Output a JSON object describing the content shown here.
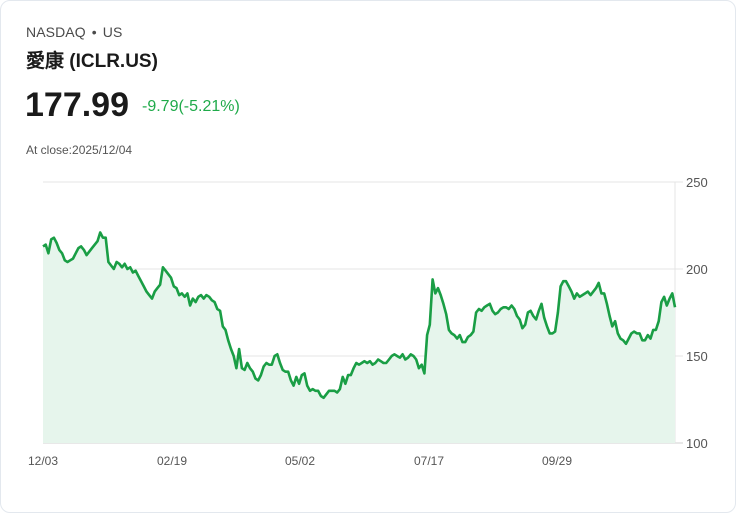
{
  "header": {
    "exchange": "NASDAQ",
    "separator": "•",
    "market": "US",
    "name": "愛康 (ICLR.US)",
    "price": "177.99",
    "change": "-9.79(-5.21%)",
    "close_label": "At close:2025/12/04"
  },
  "colors": {
    "line": "#1a9e45",
    "fill": "#e6f5ec",
    "change": "#1faa4a",
    "grid": "#e4e4e4"
  },
  "chart_data": {
    "type": "area",
    "title": "愛康 (ICLR.US)",
    "xlabel": "",
    "ylabel": "",
    "ylim": [
      100,
      250
    ],
    "yticks": [
      250,
      200,
      150,
      100
    ],
    "xticks": [
      "12/03",
      "02/19",
      "05/02",
      "07/17",
      "09/29"
    ],
    "grid": true,
    "legend": null,
    "series": [
      {
        "name": "ICLR.US close",
        "values": [
          213,
          214,
          209,
          217,
          218,
          215,
          211,
          209,
          205,
          204,
          205,
          206,
          209,
          212,
          213,
          211,
          208,
          210,
          212,
          214,
          216,
          221,
          218,
          218,
          204,
          202,
          200,
          204,
          203,
          201,
          203,
          200,
          201,
          198,
          199,
          196,
          193,
          190,
          187,
          185,
          183,
          187,
          189,
          191,
          201,
          199,
          197,
          195,
          190,
          189,
          185,
          186,
          184,
          186,
          179,
          183,
          181,
          184,
          185,
          183,
          185,
          184,
          182,
          181,
          177,
          176,
          167,
          165,
          159,
          154,
          150,
          143,
          154,
          143,
          142,
          146,
          143,
          141,
          137,
          136,
          139,
          144,
          146,
          145,
          145,
          150,
          151,
          146,
          142,
          141,
          141,
          136,
          133,
          138,
          134,
          139,
          140,
          133,
          130,
          131,
          130,
          130,
          127,
          126,
          128,
          130,
          130,
          130,
          129,
          131,
          138,
          134,
          139,
          139,
          143,
          146,
          145,
          146,
          147,
          146,
          147,
          145,
          146,
          148,
          147,
          146,
          146,
          148,
          150,
          151,
          150,
          149,
          151,
          148,
          149,
          151,
          150,
          148,
          143,
          145,
          140,
          162,
          168,
          194,
          186,
          189,
          185,
          180,
          174,
          165,
          163,
          162,
          160,
          162,
          158,
          158,
          161,
          162,
          164,
          175,
          177,
          176,
          178,
          179,
          180,
          176,
          174,
          175,
          177,
          178,
          178,
          177,
          179,
          177,
          173,
          171,
          166,
          168,
          175,
          176,
          173,
          171,
          176,
          180,
          172,
          167,
          163,
          163,
          164,
          175,
          190,
          193,
          193,
          190,
          187,
          183,
          186,
          184,
          185,
          186,
          187,
          185,
          187,
          189,
          192,
          186,
          186,
          180,
          173,
          167,
          170,
          163,
          160,
          159,
          157,
          160,
          163,
          164,
          163,
          163,
          159,
          159,
          162,
          160,
          165,
          165,
          170,
          181,
          184,
          179,
          183,
          186,
          178
        ]
      }
    ]
  }
}
